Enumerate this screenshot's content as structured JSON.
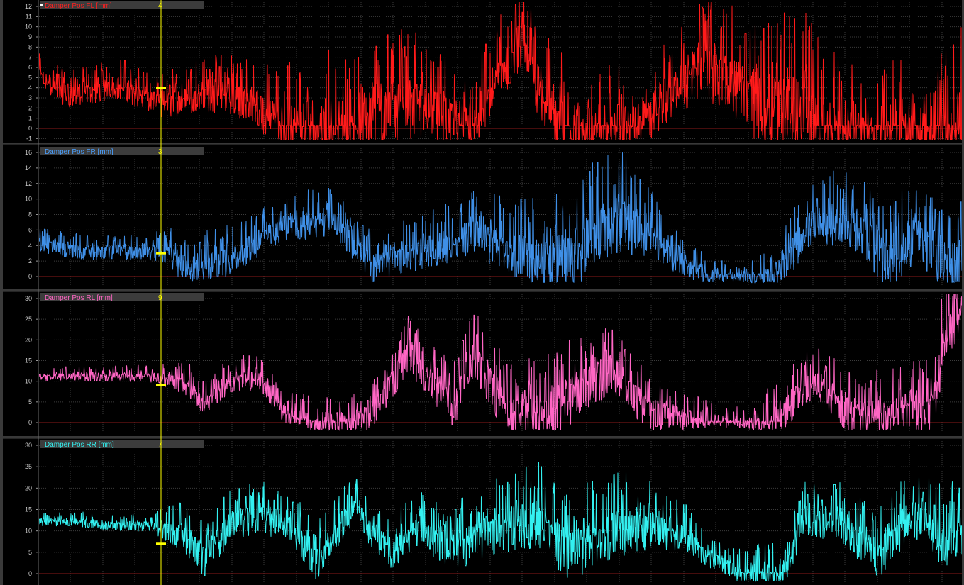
{
  "cursor_color": "#ffff00",
  "grid_color": "#3c3c3c",
  "zero_line_color": "#8b1a1a",
  "panels": [
    {
      "label": "Damper Pos FL [mm]",
      "cursor_value": "4",
      "color": "#ff1a1a",
      "label_color": "#ff2020",
      "value_color": "#ffff00",
      "header_icon": "square-marker-icon"
    },
    {
      "label": "Damper Pos FR [mm]",
      "cursor_value": "3",
      "color": "#3f8fe6",
      "label_color": "#4aa0ff",
      "value_color": "#ffff00"
    },
    {
      "label": "Damper Pos RL [mm]",
      "cursor_value": "9",
      "color": "#ff66c4",
      "label_color": "#ff66c4",
      "value_color": "#ffff00"
    },
    {
      "label": "Damper Pos RR [mm]",
      "cursor_value": "7",
      "color": "#33f0f0",
      "label_color": "#33f0f0",
      "value_color": "#ffff00"
    }
  ],
  "chart_data": [
    {
      "type": "line",
      "series": [
        {
          "name": "Damper Pos FL [mm]",
          "keypoints": [
            [
              0,
              5
            ],
            [
              3,
              3
            ],
            [
              9,
              4
            ],
            [
              13,
              2
            ],
            [
              17,
              3
            ],
            [
              21,
              3
            ],
            [
              27,
              0
            ],
            [
              33,
              0
            ],
            [
              40,
              2
            ],
            [
              47,
              0
            ],
            [
              52,
              8
            ],
            [
              56,
              0
            ],
            [
              65,
              0
            ],
            [
              72,
              6
            ],
            [
              78,
              2
            ],
            [
              86,
              0
            ],
            [
              94,
              0
            ],
            [
              100,
              0
            ]
          ],
          "amplitude": [
            [
              0,
              1.5
            ],
            [
              11,
              2
            ],
            [
              23,
              3
            ],
            [
              30,
              5
            ],
            [
              40,
              5
            ],
            [
              44,
              4
            ],
            [
              52,
              4
            ],
            [
              57,
              5
            ],
            [
              62,
              4
            ],
            [
              69,
              4
            ],
            [
              83,
              7
            ],
            [
              90,
              3
            ],
            [
              95,
              6
            ],
            [
              100,
              7
            ]
          ],
          "ylim": [
            -1.5,
            12.5
          ],
          "yticks": [
            -1,
            0,
            1,
            2,
            3,
            4,
            5,
            6,
            7,
            8,
            9,
            10,
            11,
            12
          ]
        }
      ]
    },
    {
      "type": "line",
      "series": [
        {
          "name": "Damper Pos FR [mm]",
          "keypoints": [
            [
              0,
              4
            ],
            [
              5,
              3
            ],
            [
              9,
              3
            ],
            [
              13,
              3
            ],
            [
              16,
              1
            ],
            [
              21,
              2
            ],
            [
              26,
              6
            ],
            [
              32,
              7
            ],
            [
              36,
              1
            ],
            [
              42,
              3
            ],
            [
              47,
              5
            ],
            [
              53,
              2
            ],
            [
              58,
              2
            ],
            [
              62,
              7
            ],
            [
              66,
              5
            ],
            [
              70,
              1
            ],
            [
              74,
              0
            ],
            [
              80,
              0
            ],
            [
              84,
              7
            ],
            [
              89,
              6
            ],
            [
              92,
              1
            ],
            [
              95,
              5
            ],
            [
              99,
              1
            ],
            [
              100,
              2
            ]
          ],
          "amplitude": [
            [
              0,
              1.5
            ],
            [
              12,
              1.5
            ],
            [
              15,
              3
            ],
            [
              24,
              3
            ],
            [
              37,
              3
            ],
            [
              48,
              4
            ],
            [
              62,
              7
            ],
            [
              68,
              3
            ],
            [
              75,
              1
            ],
            [
              82,
              4
            ],
            [
              100,
              6
            ]
          ],
          "ylim": [
            -1,
            16.5
          ],
          "yticks": [
            0,
            2,
            4,
            6,
            8,
            10,
            12,
            14,
            16
          ]
        }
      ]
    },
    {
      "type": "line",
      "series": [
        {
          "name": "Damper Pos RL [mm]",
          "keypoints": [
            [
              0,
              11
            ],
            [
              4,
              11
            ],
            [
              8,
              11
            ],
            [
              12,
              11
            ],
            [
              16,
              9
            ],
            [
              18,
              4
            ],
            [
              21,
              10
            ],
            [
              24,
              10
            ],
            [
              27,
              1
            ],
            [
              32,
              0
            ],
            [
              36,
              1
            ],
            [
              40,
              16
            ],
            [
              45,
              3
            ],
            [
              47,
              15
            ],
            [
              51,
              1
            ],
            [
              55,
              1
            ],
            [
              58,
              6
            ],
            [
              62,
              12
            ],
            [
              66,
              2
            ],
            [
              70,
              1
            ],
            [
              75,
              0
            ],
            [
              80,
              0
            ],
            [
              84,
              10
            ],
            [
              88,
              1
            ],
            [
              92,
              1
            ],
            [
              95,
              3
            ],
            [
              97,
              2
            ],
            [
              98,
              20
            ],
            [
              100,
              25
            ]
          ],
          "amplitude": [
            [
              0,
              1.5
            ],
            [
              12,
              2
            ],
            [
              16,
              4
            ],
            [
              25,
              4
            ],
            [
              33,
              4
            ],
            [
              38,
              6
            ],
            [
              57,
              10
            ],
            [
              67,
              6
            ],
            [
              75,
              2
            ],
            [
              80,
              6
            ],
            [
              96,
              8
            ],
            [
              100,
              9
            ]
          ],
          "ylim": [
            -2,
            31
          ],
          "yticks": [
            0,
            5,
            10,
            15,
            20,
            25,
            30
          ]
        }
      ]
    },
    {
      "type": "line",
      "series": [
        {
          "name": "Damper Pos RR [mm]",
          "keypoints": [
            [
              0,
              12
            ],
            [
              4,
              12
            ],
            [
              8,
              11
            ],
            [
              12,
              11
            ],
            [
              16,
              8
            ],
            [
              18,
              2
            ],
            [
              21,
              12
            ],
            [
              23,
              12
            ],
            [
              27,
              12
            ],
            [
              30,
              2
            ],
            [
              34,
              15
            ],
            [
              38,
              4
            ],
            [
              41,
              10
            ],
            [
              45,
              5
            ],
            [
              48,
              8
            ],
            [
              51,
              10
            ],
            [
              55,
              12
            ],
            [
              57,
              3
            ],
            [
              61,
              8
            ],
            [
              64,
              10
            ],
            [
              67,
              10
            ],
            [
              70,
              8
            ],
            [
              73,
              3
            ],
            [
              76,
              0
            ],
            [
              81,
              0
            ],
            [
              83,
              13
            ],
            [
              87,
              11
            ],
            [
              91,
              3
            ],
            [
              94,
              12
            ],
            [
              96,
              13
            ],
            [
              98,
              6
            ],
            [
              100,
              10
            ]
          ],
          "amplitude": [
            [
              0,
              1.5
            ],
            [
              12,
              2
            ],
            [
              16,
              6
            ],
            [
              32,
              6
            ],
            [
              40,
              6
            ],
            [
              56,
              10
            ],
            [
              64,
              9
            ],
            [
              74,
              3
            ],
            [
              81,
              6
            ],
            [
              100,
              9
            ]
          ],
          "ylim": [
            -2,
            31
          ],
          "yticks": [
            0,
            5,
            10,
            15,
            20,
            25,
            30
          ]
        }
      ]
    }
  ]
}
